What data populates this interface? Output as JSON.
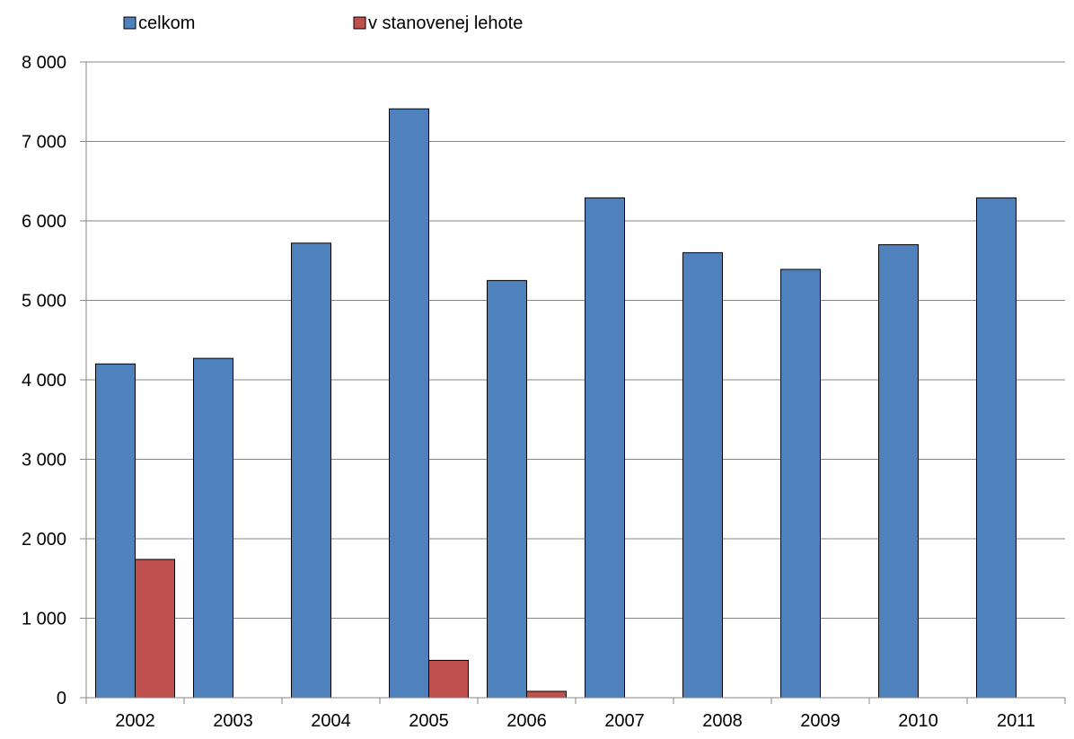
{
  "chart_data": {
    "type": "bar",
    "title": "",
    "xlabel": "",
    "ylabel": "",
    "categories": [
      "2002",
      "2003",
      "2004",
      "2005",
      "2006",
      "2007",
      "2008",
      "2009",
      "2010",
      "2011"
    ],
    "series": [
      {
        "name": "celkom",
        "color": "#4F81BD",
        "values": [
          4200,
          4270,
          5720,
          7410,
          5250,
          6290,
          5600,
          5390,
          5700,
          6290
        ]
      },
      {
        "name": "v stanovenej lehote",
        "color": "#C0504D",
        "values": [
          1740,
          0,
          0,
          470,
          80,
          0,
          0,
          0,
          0,
          0
        ]
      }
    ],
    "ylim": [
      0,
      8000
    ],
    "yticks": [
      0,
      1000,
      2000,
      3000,
      4000,
      5000,
      6000,
      7000,
      8000
    ],
    "ytick_labels": [
      "0",
      "1 000",
      "2 000",
      "3 000",
      "4 000",
      "5 000",
      "6 000",
      "7 000",
      "8 000"
    ],
    "grid": true,
    "legend_position": "top-left"
  }
}
